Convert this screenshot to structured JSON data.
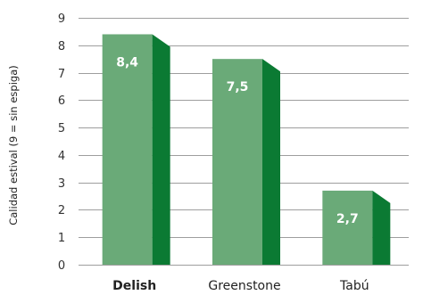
{
  "chart_data": {
    "type": "bar",
    "categories": [
      "Delish",
      "Greenstone",
      "Tabú"
    ],
    "values": [
      8.4,
      7.5,
      2.7
    ],
    "value_labels": [
      "8,4",
      "7,5",
      "2,7"
    ],
    "highlight_category": "Delish",
    "ylabel": "Calidad estival (9 = sin espiga)",
    "ylim": [
      0,
      9
    ],
    "yticks": [
      "0",
      "1",
      "2",
      "3",
      "4",
      "5",
      "6",
      "7",
      "8",
      "9"
    ],
    "grid": true,
    "colors": {
      "bar_front": "#6aaa78",
      "bar_side": "#0b7a33",
      "grid": "#9e9e9e"
    }
  }
}
